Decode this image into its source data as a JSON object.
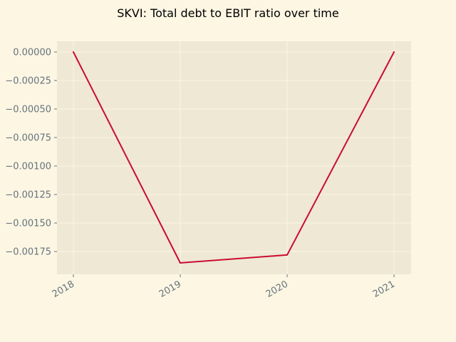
{
  "chart_data": {
    "type": "line",
    "title": "SKVI: Total debt to EBIT ratio over time",
    "xlabel": "",
    "ylabel": "",
    "x": [
      "2018",
      "2019",
      "2020",
      "2021"
    ],
    "series": [
      {
        "values": [
          0.0,
          -0.00185,
          -0.00178,
          0.0
        ]
      }
    ],
    "ylim": [
      -0.00195,
      0.0001
    ],
    "yticks": [
      0.0,
      -0.00025,
      -0.0005,
      -0.00075,
      -0.001,
      -0.00125,
      -0.0015,
      -0.00175
    ],
    "ytick_labels": [
      "0.00000",
      "−0.00025",
      "−0.00050",
      "−0.00075",
      "−0.00100",
      "−0.00125",
      "−0.00150",
      "−0.00175"
    ],
    "grid": true,
    "colors": {
      "figure_background": "#fdf6e3",
      "plot_background": "#eee8d5",
      "grid": "#fdf6e3",
      "line": "#cb0c2f",
      "tick_label": "#65737e"
    }
  }
}
